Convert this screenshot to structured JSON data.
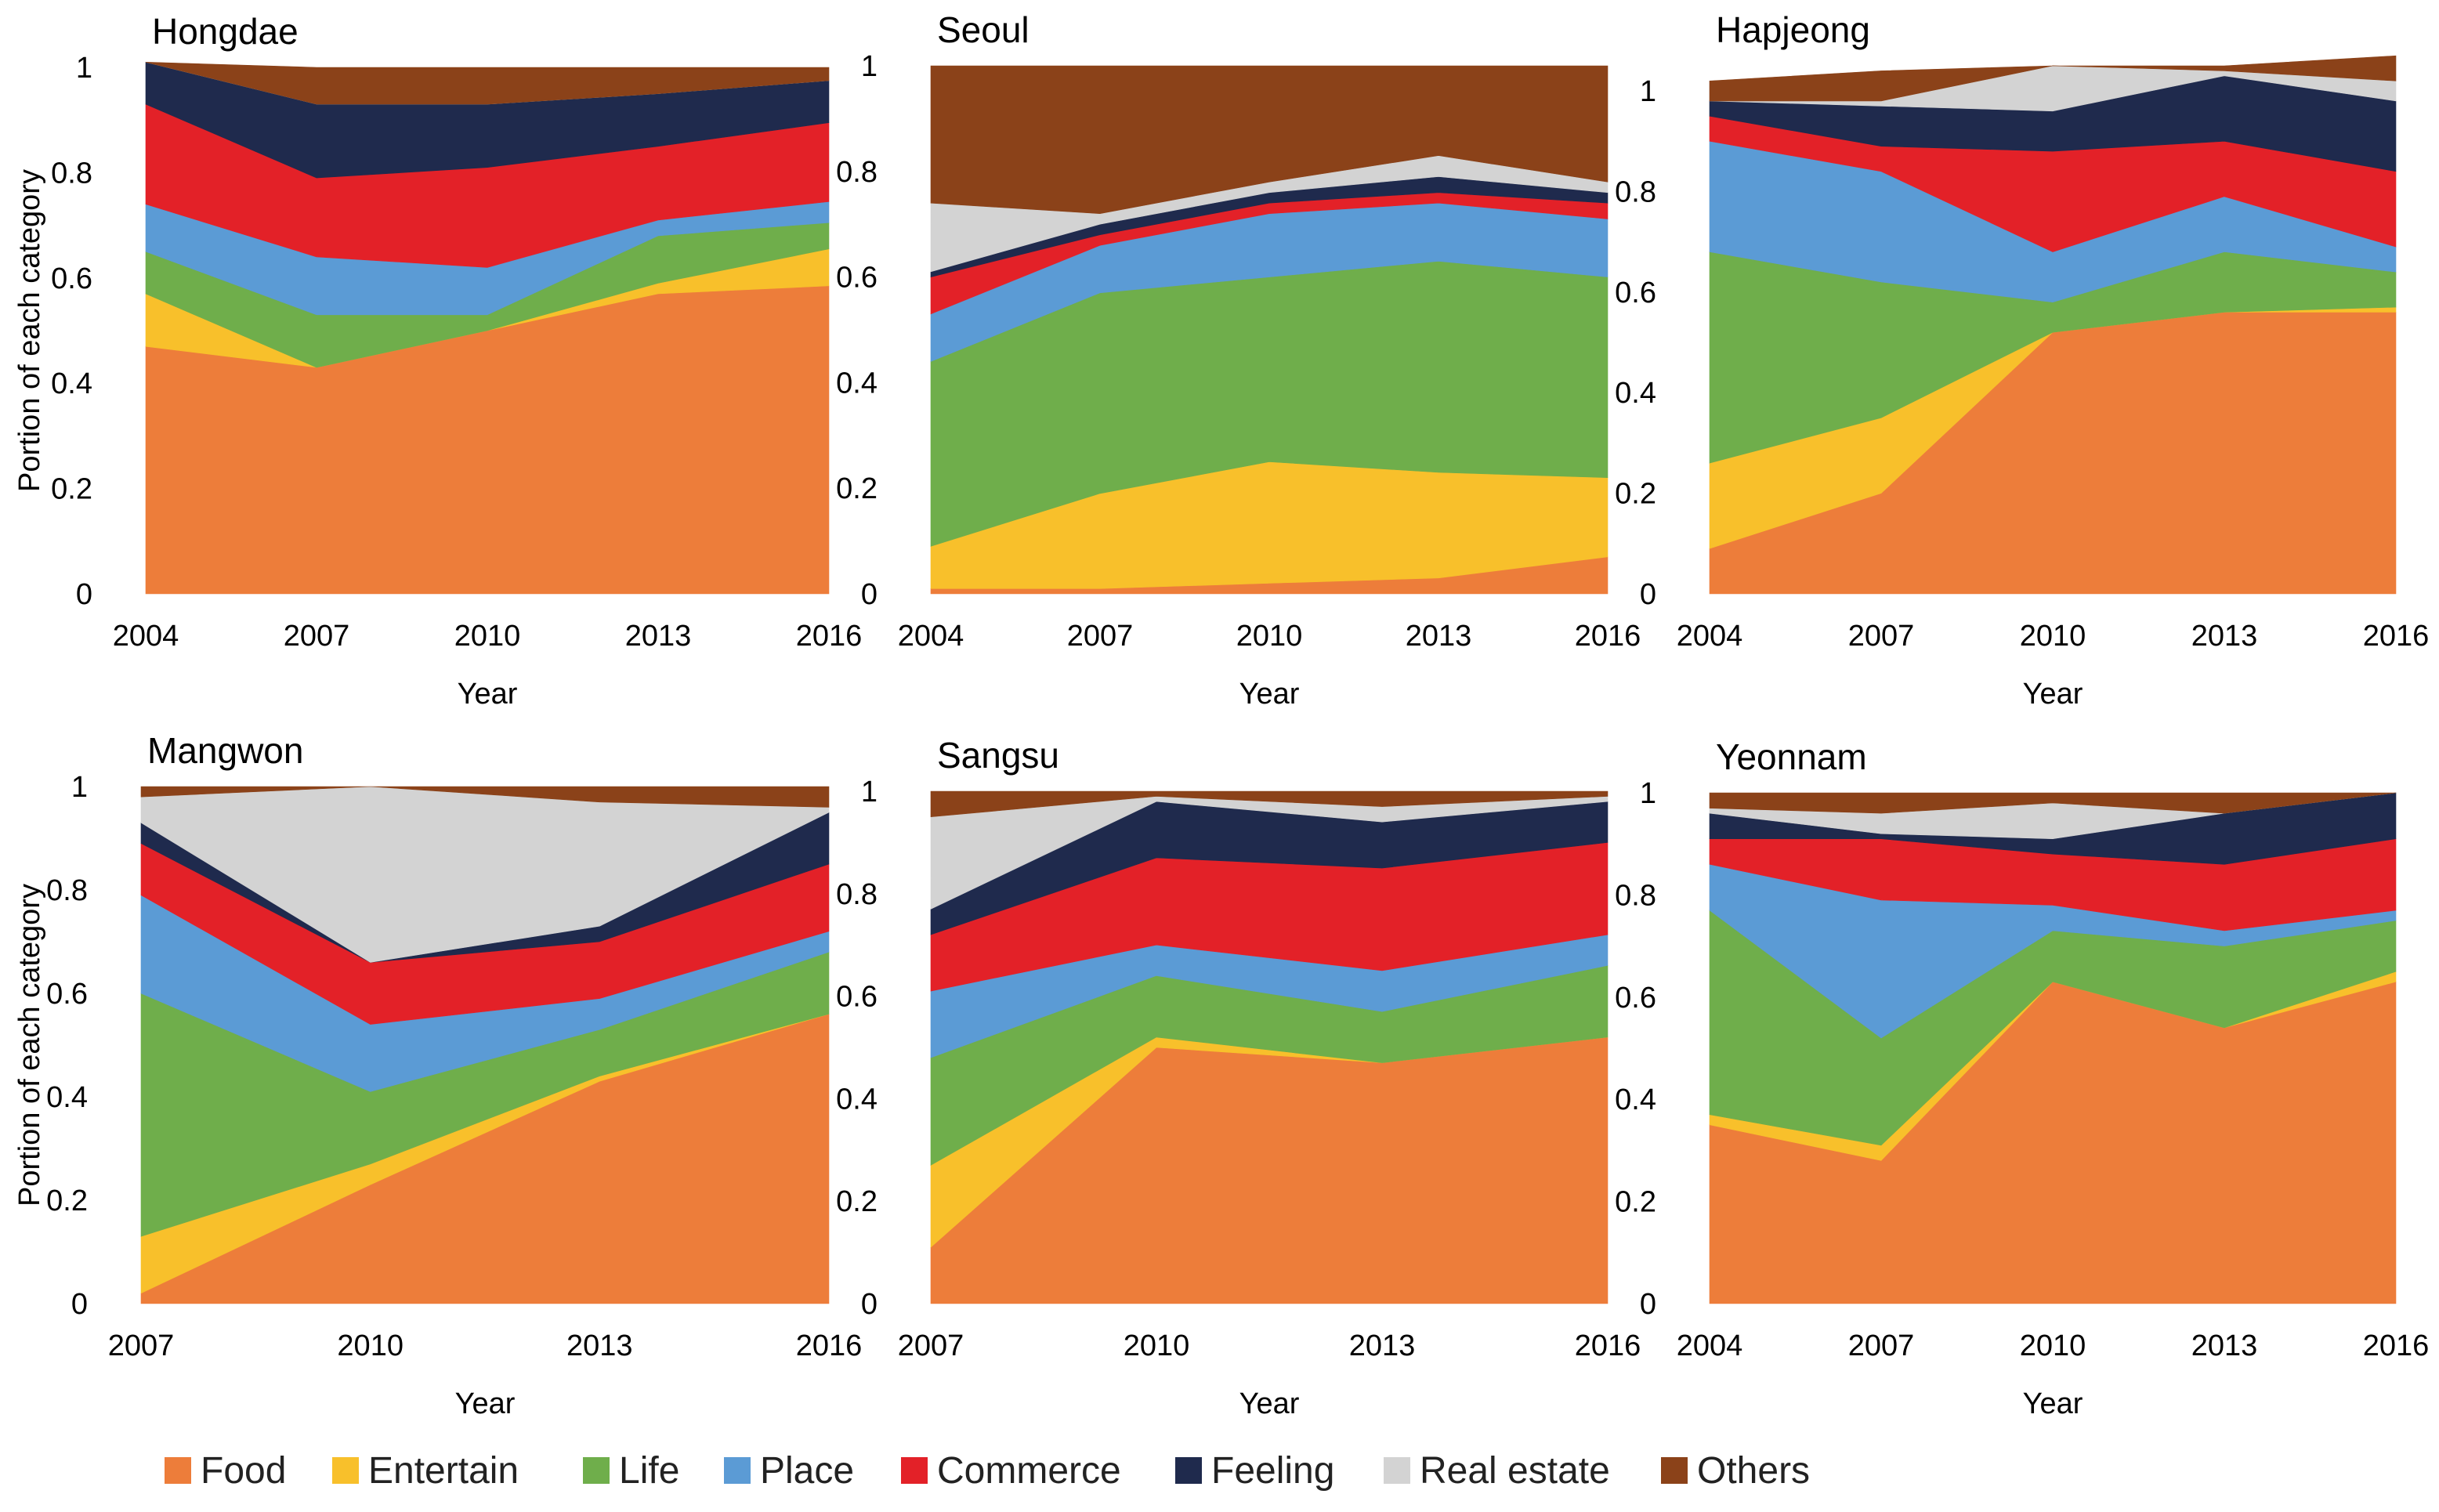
{
  "figure": {
    "categories": [
      "Food",
      "Entertain",
      "Life",
      "Place",
      "Commerce",
      "Feeling",
      "Real estate",
      "Others"
    ],
    "colors": {
      "Food": "#ED7D3A",
      "Entertain": "#F8C02B",
      "Life": "#6FAE4B",
      "Place": "#5B9BD5",
      "Commerce": "#E32128",
      "Feeling": "#1F2A4D",
      "Real estate": "#D3D3D3",
      "Others": "#8B4219"
    },
    "legend": {
      "placement": "bottom",
      "labels": [
        "Food",
        "Entertain",
        "Life",
        "Place",
        "Commerce",
        "Feeling",
        "Real estate",
        "Others"
      ]
    }
  },
  "chart_data": [
    {
      "type": "area",
      "stacked": true,
      "title": "Hongdae",
      "xlabel": "Year",
      "ylabel": "Portion of each category",
      "x": [
        "2004",
        "2007",
        "2010",
        "2013",
        "2016"
      ],
      "ylim": [
        0,
        1
      ],
      "yticks": [
        "0",
        "0.2",
        "0.4",
        "0.6",
        "0.8",
        "1"
      ],
      "show_ylabel": true,
      "series": [
        {
          "name": "Food",
          "values": [
            0.47,
            0.43,
            0.5,
            0.57,
            0.585
          ]
        },
        {
          "name": "Entertain",
          "values": [
            0.1,
            0.0,
            0.0,
            0.02,
            0.07
          ]
        },
        {
          "name": "Life",
          "values": [
            0.08,
            0.1,
            0.03,
            0.09,
            0.05
          ]
        },
        {
          "name": "Place",
          "values": [
            0.09,
            0.11,
            0.09,
            0.03,
            0.04
          ]
        },
        {
          "name": "Commerce",
          "values": [
            0.19,
            0.15,
            0.19,
            0.14,
            0.15
          ]
        },
        {
          "name": "Feeling",
          "values": [
            0.08,
            0.14,
            0.12,
            0.1,
            0.08
          ]
        },
        {
          "name": "Real estate",
          "values": [
            0.0,
            0.0,
            0.0,
            0.0,
            0.0
          ]
        },
        {
          "name": "Others",
          "values": [
            0.0,
            0.07,
            0.07,
            0.05,
            0.025
          ]
        }
      ]
    },
    {
      "type": "area",
      "stacked": true,
      "title": "Seoul",
      "xlabel": "Year",
      "ylabel": "",
      "x": [
        "2004",
        "2007",
        "2010",
        "2013",
        "2016"
      ],
      "ylim": [
        0,
        1
      ],
      "yticks": [
        "0",
        "0.2",
        "0.4",
        "0.6",
        "0.8",
        "1"
      ],
      "show_ylabel": false,
      "series": [
        {
          "name": "Food",
          "values": [
            0.01,
            0.01,
            0.02,
            0.03,
            0.07
          ]
        },
        {
          "name": "Entertain",
          "values": [
            0.08,
            0.18,
            0.23,
            0.2,
            0.15
          ]
        },
        {
          "name": "Life",
          "values": [
            0.35,
            0.38,
            0.35,
            0.4,
            0.38
          ]
        },
        {
          "name": "Place",
          "values": [
            0.09,
            0.09,
            0.12,
            0.11,
            0.11
          ]
        },
        {
          "name": "Commerce",
          "values": [
            0.07,
            0.02,
            0.02,
            0.02,
            0.03
          ]
        },
        {
          "name": "Feeling",
          "values": [
            0.01,
            0.02,
            0.02,
            0.03,
            0.02
          ]
        },
        {
          "name": "Real estate",
          "values": [
            0.13,
            0.02,
            0.02,
            0.04,
            0.02
          ]
        },
        {
          "name": "Others",
          "values": [
            0.26,
            0.28,
            0.22,
            0.17,
            0.22
          ]
        }
      ]
    },
    {
      "type": "area",
      "stacked": true,
      "title": "Hapjeong",
      "xlabel": "Year",
      "ylabel": "",
      "x": [
        "2004",
        "2007",
        "2010",
        "2013",
        "2016"
      ],
      "ylim": [
        0,
        1.05
      ],
      "yticks": [
        "0",
        "0.2",
        "0.4",
        "0.6",
        "0.8",
        "1"
      ],
      "show_ylabel": false,
      "series": [
        {
          "name": "Food",
          "values": [
            0.09,
            0.2,
            0.52,
            0.56,
            0.56
          ]
        },
        {
          "name": "Entertain",
          "values": [
            0.17,
            0.15,
            0.0,
            0.0,
            0.01
          ]
        },
        {
          "name": "Life",
          "values": [
            0.42,
            0.27,
            0.06,
            0.12,
            0.07
          ]
        },
        {
          "name": "Place",
          "values": [
            0.22,
            0.22,
            0.1,
            0.11,
            0.05
          ]
        },
        {
          "name": "Commerce",
          "values": [
            0.05,
            0.05,
            0.2,
            0.11,
            0.15
          ]
        },
        {
          "name": "Feeling",
          "values": [
            0.03,
            0.08,
            0.08,
            0.13,
            0.14
          ]
        },
        {
          "name": "Real estate",
          "values": [
            0.0,
            0.01,
            0.09,
            0.01,
            0.04
          ]
        },
        {
          "name": "Others",
          "values": [
            0.04,
            0.06,
            0.0,
            0.01,
            0.05
          ]
        }
      ]
    },
    {
      "type": "area",
      "stacked": true,
      "title": "Mangwon",
      "xlabel": "Year",
      "ylabel": "Portion of each category",
      "x": [
        "2007",
        "2010",
        "2013",
        "2016"
      ],
      "ylim": [
        0,
        1
      ],
      "yticks": [
        "0",
        "0.2",
        "0.4",
        "0.6",
        "0.8",
        "1"
      ],
      "show_ylabel": true,
      "series": [
        {
          "name": "Food",
          "values": [
            0.02,
            0.23,
            0.43,
            0.56
          ]
        },
        {
          "name": "Entertain",
          "values": [
            0.11,
            0.04,
            0.01,
            0.0
          ]
        },
        {
          "name": "Life",
          "values": [
            0.47,
            0.14,
            0.09,
            0.12
          ]
        },
        {
          "name": "Place",
          "values": [
            0.19,
            0.13,
            0.06,
            0.04
          ]
        },
        {
          "name": "Commerce",
          "values": [
            0.1,
            0.12,
            0.11,
            0.13
          ]
        },
        {
          "name": "Feeling",
          "values": [
            0.04,
            0.0,
            0.03,
            0.1
          ]
        },
        {
          "name": "Real estate",
          "values": [
            0.05,
            0.34,
            0.24,
            0.01
          ]
        },
        {
          "name": "Others",
          "values": [
            0.02,
            0.0,
            0.03,
            0.04
          ]
        }
      ]
    },
    {
      "type": "area",
      "stacked": true,
      "title": "Sangsu",
      "xlabel": "Year",
      "ylabel": "",
      "x": [
        "2007",
        "2010",
        "2013",
        "2016"
      ],
      "ylim": [
        0,
        1
      ],
      "yticks": [
        "0",
        "0.2",
        "0.4",
        "0.6",
        "0.8",
        "1"
      ],
      "show_ylabel": false,
      "series": [
        {
          "name": "Food",
          "values": [
            0.11,
            0.5,
            0.47,
            0.52
          ]
        },
        {
          "name": "Entertain",
          "values": [
            0.16,
            0.02,
            0.0,
            0.0
          ]
        },
        {
          "name": "Life",
          "values": [
            0.21,
            0.12,
            0.1,
            0.14
          ]
        },
        {
          "name": "Place",
          "values": [
            0.13,
            0.06,
            0.08,
            0.06
          ]
        },
        {
          "name": "Commerce",
          "values": [
            0.11,
            0.17,
            0.2,
            0.18
          ]
        },
        {
          "name": "Feeling",
          "values": [
            0.05,
            0.11,
            0.09,
            0.08
          ]
        },
        {
          "name": "Real estate",
          "values": [
            0.18,
            0.01,
            0.03,
            0.01
          ]
        },
        {
          "name": "Others",
          "values": [
            0.05,
            0.01,
            0.03,
            0.01
          ]
        }
      ]
    },
    {
      "type": "area",
      "stacked": true,
      "title": "Yeonnam",
      "xlabel": "Year",
      "ylabel": "",
      "x": [
        "2004",
        "2007",
        "2010",
        "2013",
        "2016"
      ],
      "ylim": [
        0,
        1
      ],
      "yticks": [
        "0",
        "0.2",
        "0.4",
        "0.6",
        "0.8",
        "1"
      ],
      "show_ylabel": false,
      "series": [
        {
          "name": "Food",
          "values": [
            0.35,
            0.28,
            0.63,
            0.54,
            0.63
          ]
        },
        {
          "name": "Entertain",
          "values": [
            0.02,
            0.03,
            0.0,
            0.0,
            0.02
          ]
        },
        {
          "name": "Life",
          "values": [
            0.4,
            0.21,
            0.1,
            0.16,
            0.1
          ]
        },
        {
          "name": "Place",
          "values": [
            0.09,
            0.27,
            0.05,
            0.03,
            0.02
          ]
        },
        {
          "name": "Commerce",
          "values": [
            0.05,
            0.12,
            0.1,
            0.13,
            0.14
          ]
        },
        {
          "name": "Feeling",
          "values": [
            0.05,
            0.01,
            0.03,
            0.1,
            0.09
          ]
        },
        {
          "name": "Real estate",
          "values": [
            0.01,
            0.04,
            0.07,
            0.0,
            0.0
          ]
        },
        {
          "name": "Others",
          "values": [
            0.03,
            0.04,
            0.02,
            0.04,
            0.0
          ]
        }
      ]
    }
  ]
}
